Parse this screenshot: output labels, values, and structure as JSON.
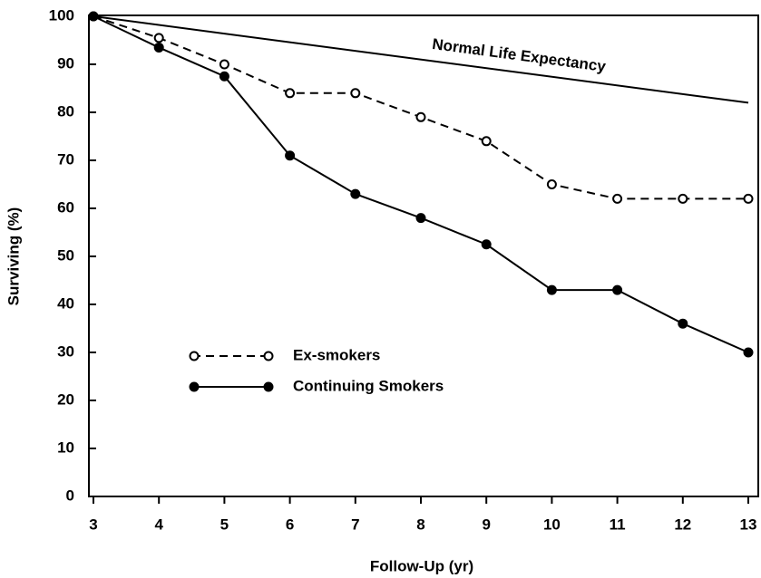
{
  "chart_data": {
    "type": "line",
    "xlabel": "Follow-Up (yr)",
    "ylabel": "Surviving (%)",
    "xlim": [
      3,
      13
    ],
    "xticks": [
      3,
      4,
      5,
      6,
      7,
      8,
      9,
      10,
      11,
      12,
      13
    ],
    "ylim": [
      0,
      100
    ],
    "yticks": [
      0,
      10,
      20,
      30,
      40,
      50,
      60,
      70,
      80,
      90,
      100
    ],
    "grid": false,
    "series": [
      {
        "name": "Ex-smokers",
        "color": "#000000",
        "linestyle": "dashed",
        "marker": "open",
        "x": [
          3,
          4,
          5,
          6,
          7,
          8,
          9,
          10,
          11,
          12,
          13
        ],
        "values": [
          100,
          95.5,
          90,
          84,
          84,
          79,
          74,
          65,
          62,
          62,
          62
        ]
      },
      {
        "name": "Continuing Smokers",
        "color": "#000000",
        "linestyle": "solid",
        "marker": "filled",
        "x": [
          3,
          4,
          5,
          6,
          7,
          8,
          9,
          10,
          11,
          12,
          13
        ],
        "values": [
          100,
          93.5,
          87.5,
          71,
          63,
          58,
          52.5,
          43,
          43,
          36,
          30
        ]
      },
      {
        "name": "Normal Life Expectancy",
        "color": "#000000",
        "linestyle": "solid",
        "marker": "none",
        "x": [
          3,
          13
        ],
        "values": [
          100,
          82
        ]
      }
    ]
  }
}
